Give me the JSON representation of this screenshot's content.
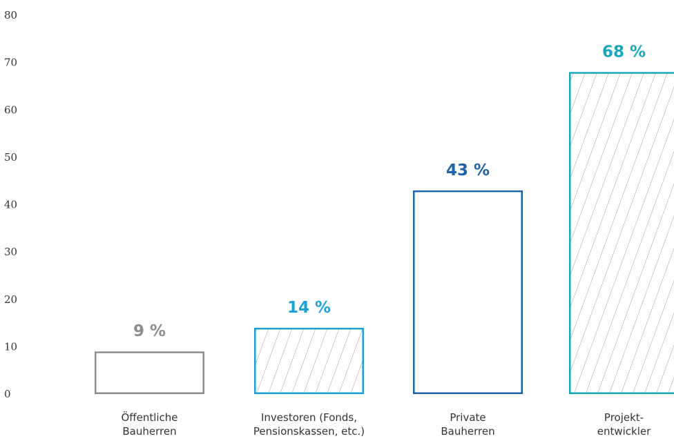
{
  "chart_data": {
    "type": "bar",
    "title": "",
    "xlabel": "",
    "ylabel": "",
    "ylim": [
      0,
      80
    ],
    "yticks": [
      0,
      10,
      20,
      30,
      40,
      50,
      60,
      70,
      80
    ],
    "ytick_labels": [
      "0",
      "10",
      "20",
      "30",
      "40",
      "50",
      "60",
      "70",
      "80"
    ],
    "grid": false,
    "categories": [
      [
        "Öffentliche",
        "Bauherren"
      ],
      [
        "Investoren (Fonds,",
        "Pensionskassen, etc.)"
      ],
      [
        "Private",
        "Bauherren"
      ],
      [
        "Projekt-",
        "entwickler"
      ]
    ],
    "values": [
      9,
      14,
      43,
      68
    ],
    "value_labels": [
      "9 %",
      "14 %",
      "43 %",
      "68 %"
    ],
    "bar_styles": [
      "outline",
      "hatched",
      "outline",
      "hatched"
    ],
    "colors": [
      "#8c8c8c",
      "#1ba1d8",
      "#1e63a7",
      "#17a7bd"
    ]
  }
}
